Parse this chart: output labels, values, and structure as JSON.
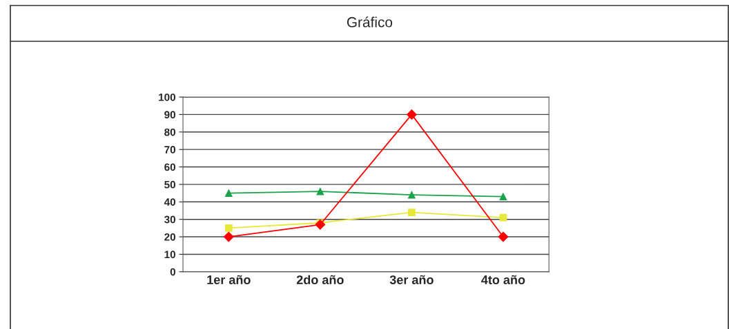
{
  "chart_data": {
    "type": "line",
    "title": "Gráfico",
    "categories": [
      "1er año",
      "2do año",
      "3er año",
      "4to año"
    ],
    "series": [
      {
        "color": "#ff0000",
        "marker": "diamond",
        "values": [
          20,
          27,
          90,
          20
        ]
      },
      {
        "color": "#e8e83a",
        "marker": "square",
        "values": [
          25,
          28,
          34,
          31
        ]
      },
      {
        "color": "#1aa34a",
        "marker": "triangle",
        "values": [
          45,
          46,
          44,
          43
        ]
      }
    ],
    "ylim": [
      0,
      100
    ],
    "yticks": [
      0,
      10,
      20,
      30,
      40,
      50,
      60,
      70,
      80,
      90,
      100
    ],
    "grid": "y",
    "legend": false
  }
}
